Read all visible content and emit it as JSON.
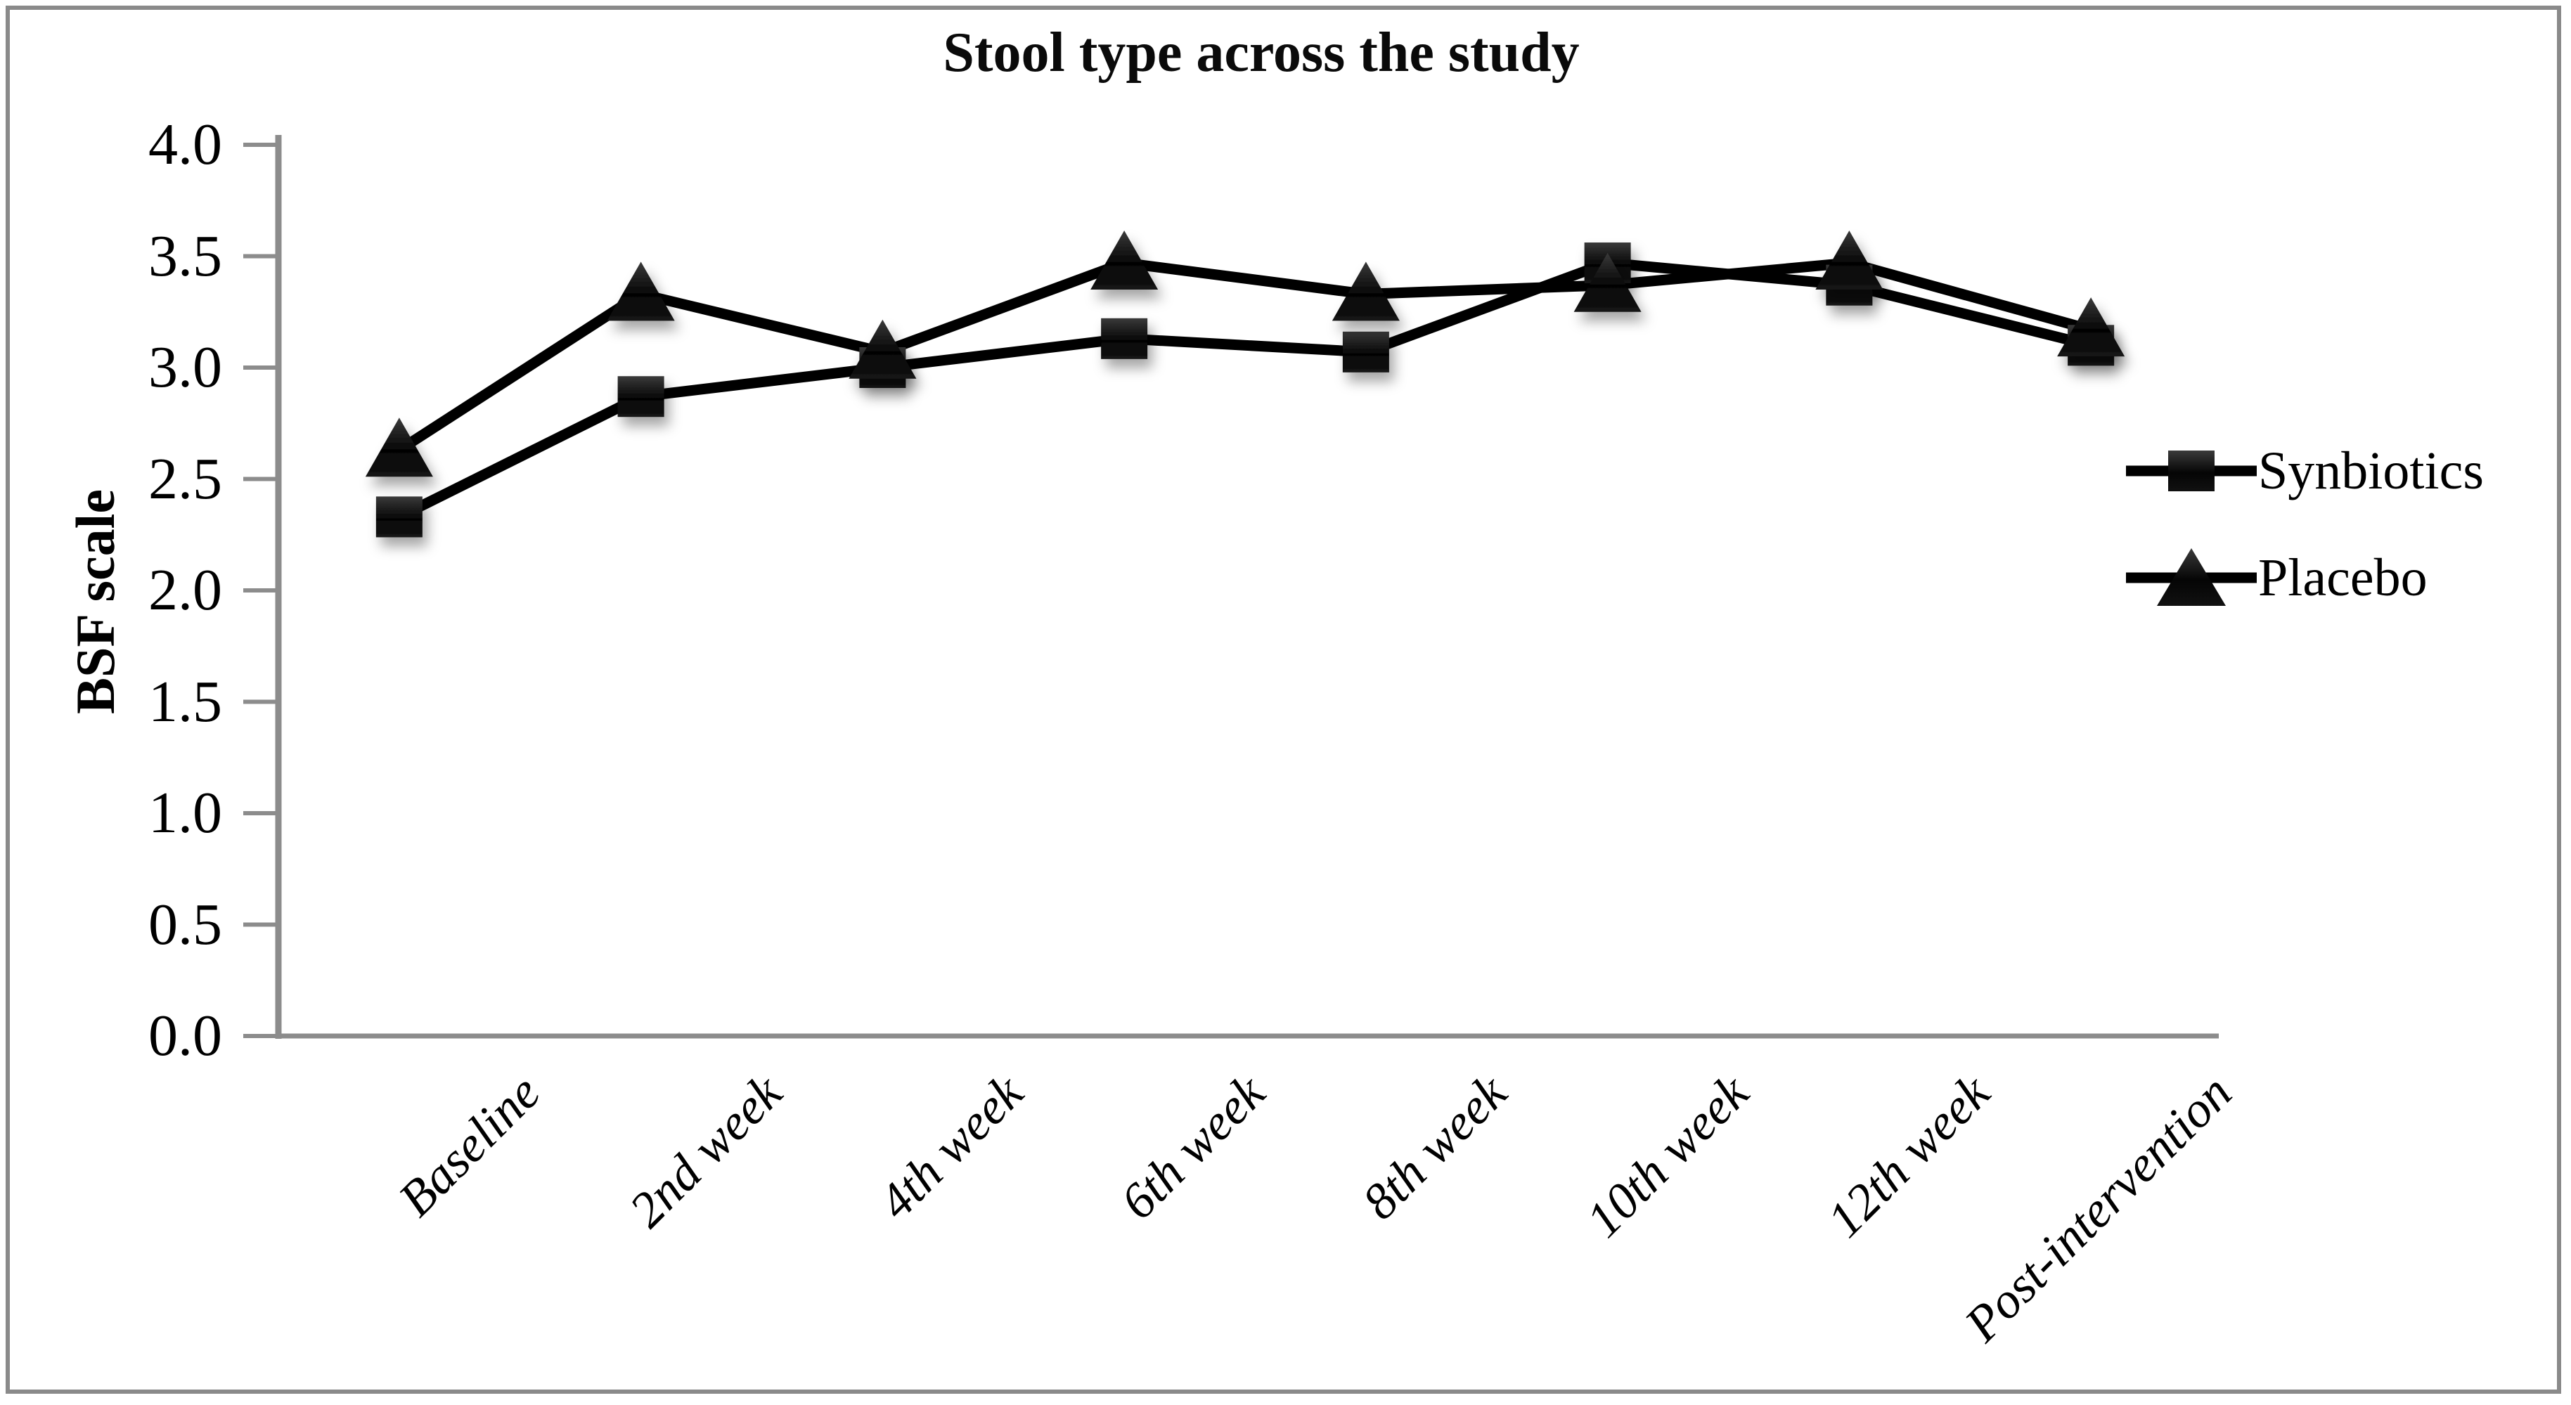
{
  "title": "Stool type across the study",
  "chart_data": {
    "type": "line",
    "categories": [
      "Baseline",
      "2nd week",
      "4th week",
      "6th week",
      "8th week",
      "10th week",
      "12th week",
      "Post-intervention"
    ],
    "series": [
      {
        "name": "Synbiotics",
        "marker": "square",
        "values": [
          2.33,
          2.87,
          3.0,
          3.13,
          3.07,
          3.47,
          3.37,
          3.1
        ]
      },
      {
        "name": "Placebo",
        "marker": "triangle",
        "values": [
          2.63,
          3.33,
          3.07,
          3.47,
          3.33,
          3.37,
          3.47,
          3.17
        ]
      }
    ],
    "xlabel": "",
    "ylabel": "BSF scale",
    "ylim": [
      0.0,
      4.0
    ],
    "ytick_step": 0.5,
    "ytick_labels": [
      "0.0",
      "0.5",
      "1.0",
      "1.5",
      "2.0",
      "2.5",
      "3.0",
      "3.5",
      "4.0"
    ],
    "grid": false,
    "legend_position": "right"
  },
  "colors": {
    "series_line": "#000000",
    "marker_fill": "#0d0d0d",
    "axis": "#8c8c8c",
    "frame_border": "#8a8a8a",
    "background": "#ffffff",
    "text": "#000000"
  }
}
